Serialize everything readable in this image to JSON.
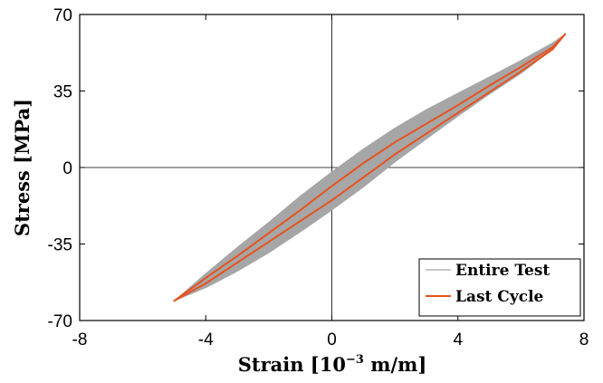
{
  "chart_data": {
    "type": "line",
    "xlabel": {
      "base": "Strain [10",
      "sup": "−3",
      "tail": " m/m]"
    },
    "ylabel": "Stress [MPa]",
    "xlim": [
      -8,
      8
    ],
    "ylim": [
      -70,
      70
    ],
    "xticks": [
      -8,
      -4,
      0,
      4,
      8
    ],
    "yticks": [
      -70,
      -35,
      0,
      35,
      70
    ],
    "xtick_labels": [
      "-8",
      "-4",
      "0",
      "4",
      "8"
    ],
    "ytick_labels": [
      "-70",
      "-35",
      "0",
      "35",
      "70"
    ],
    "grid": false,
    "zero_lines": true,
    "legend_position": "bottom-right",
    "series": [
      {
        "name": "Entire Test",
        "style": "filled band",
        "color": "#a6a6a6",
        "upper": [
          [
            -5.0,
            -61
          ],
          [
            -4.0,
            -48.5
          ],
          [
            -3.0,
            -36.5
          ],
          [
            -2.0,
            -25
          ],
          [
            -1.0,
            -13
          ],
          [
            0.0,
            -2
          ],
          [
            1.0,
            8.5
          ],
          [
            2.0,
            18
          ],
          [
            3.0,
            26.5
          ],
          [
            4.0,
            34
          ],
          [
            5.0,
            41.5
          ],
          [
            6.0,
            49
          ],
          [
            7.0,
            57
          ],
          [
            7.4,
            61
          ]
        ],
        "lower": [
          [
            -5.0,
            -61
          ],
          [
            -4.0,
            -55
          ],
          [
            -3.0,
            -47.5
          ],
          [
            -2.0,
            -39
          ],
          [
            -1.0,
            -29.5
          ],
          [
            0.0,
            -19.5
          ],
          [
            1.0,
            -9
          ],
          [
            2.0,
            2.5
          ],
          [
            3.0,
            13
          ],
          [
            4.0,
            23.5
          ],
          [
            5.0,
            33.5
          ],
          [
            6.0,
            43
          ],
          [
            7.0,
            54
          ],
          [
            7.4,
            61
          ]
        ]
      },
      {
        "name": "Last Cycle",
        "style": "loop",
        "color": "#e6521f",
        "upper": [
          [
            -5.0,
            -61
          ],
          [
            -4.0,
            -50.5
          ],
          [
            -3.0,
            -40.5
          ],
          [
            -2.0,
            -30
          ],
          [
            -1.0,
            -19.5
          ],
          [
            0.0,
            -8.5
          ],
          [
            1.0,
            2
          ],
          [
            2.0,
            11.5
          ],
          [
            3.0,
            20
          ],
          [
            4.0,
            28.5
          ],
          [
            5.0,
            37.5
          ],
          [
            6.0,
            46
          ],
          [
            7.0,
            55
          ],
          [
            7.4,
            61
          ]
        ],
        "lower": [
          [
            -5.0,
            -61
          ],
          [
            -4.0,
            -53
          ],
          [
            -3.0,
            -43.5
          ],
          [
            -2.0,
            -34
          ],
          [
            -1.0,
            -24.5
          ],
          [
            0.0,
            -15
          ],
          [
            1.0,
            -4.5
          ],
          [
            2.0,
            6
          ],
          [
            3.0,
            15.5
          ],
          [
            4.0,
            25
          ],
          [
            5.0,
            34.5
          ],
          [
            6.0,
            44
          ],
          [
            7.0,
            54
          ],
          [
            7.4,
            61
          ]
        ]
      }
    ]
  }
}
